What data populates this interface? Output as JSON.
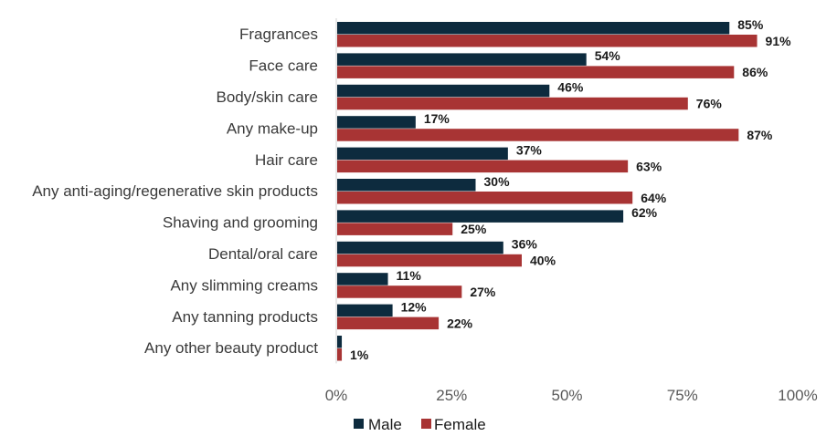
{
  "chart_data": {
    "type": "bar",
    "orientation": "horizontal",
    "categories": [
      "Fragrances",
      "Face care",
      "Body/skin care",
      "Any make-up",
      "Hair care",
      "Any anti-aging/regenerative skin products",
      "Shaving and grooming",
      "Dental/oral care",
      "Any slimming creams",
      "Any tanning products",
      "Any other beauty product"
    ],
    "series": [
      {
        "name": "Male",
        "color": "#0d2b3e",
        "values": [
          85,
          54,
          46,
          17,
          37,
          30,
          62,
          36,
          11,
          12,
          1
        ],
        "labels": [
          "85%",
          "54%",
          "46%",
          "17%",
          "37%",
          "30%",
          "62%",
          "36%",
          "11%",
          "12%",
          ""
        ]
      },
      {
        "name": "Female",
        "color": "#a83434",
        "values": [
          91,
          86,
          76,
          87,
          63,
          64,
          25,
          40,
          27,
          22,
          1
        ],
        "labels": [
          "91%",
          "86%",
          "76%",
          "87%",
          "63%",
          "64%",
          "25%",
          "40%",
          "27%",
          "22%",
          "1%"
        ]
      }
    ],
    "xlim": [
      0,
      100
    ],
    "xticks": [
      0,
      25,
      50,
      75,
      100
    ],
    "xtick_labels": [
      "0%",
      "25%",
      "50%",
      "75%",
      "100%"
    ],
    "grid": false,
    "legend_position": "bottom",
    "title": "",
    "xlabel": "",
    "ylabel": ""
  }
}
